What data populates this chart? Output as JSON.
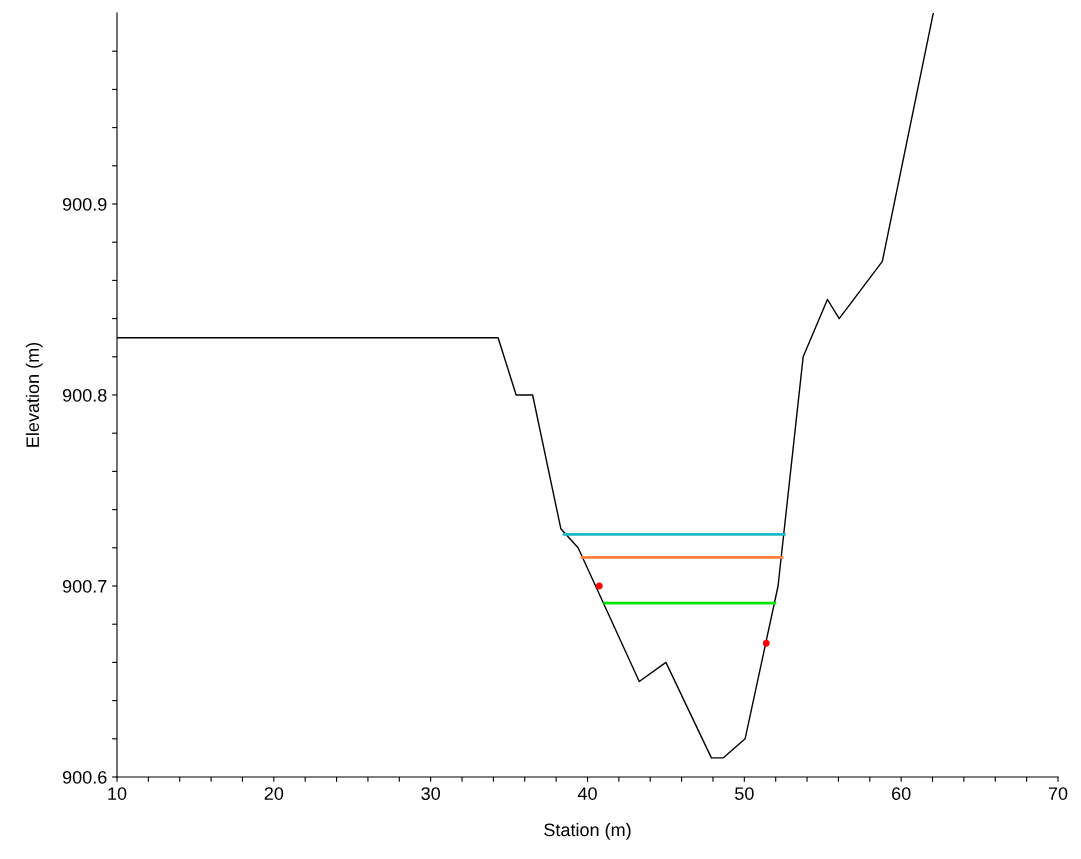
{
  "chart_data": {
    "type": "line",
    "xlabel": "Station (m)",
    "ylabel": "Elevation (m)",
    "xlim": [
      10,
      70
    ],
    "ylim": [
      900.6,
      901.0
    ],
    "xticks": [
      10,
      {
        "value": 12,
        "label": null
      },
      {
        "value": 14,
        "label": null
      },
      {
        "value": 16,
        "label": null
      },
      {
        "value": 18,
        "label": null
      },
      20,
      {
        "value": 22,
        "label": null
      },
      {
        "value": 24,
        "label": null
      },
      {
        "value": 26,
        "label": null
      },
      {
        "value": 28,
        "label": null
      },
      30,
      {
        "value": 32,
        "label": null
      },
      {
        "value": 34,
        "label": null
      },
      {
        "value": 36,
        "label": null
      },
      {
        "value": 38,
        "label": null
      },
      40,
      {
        "value": 42,
        "label": null
      },
      {
        "value": 44,
        "label": null
      },
      {
        "value": 46,
        "label": null
      },
      {
        "value": 48,
        "label": null
      },
      50,
      {
        "value": 52,
        "label": null
      },
      {
        "value": 54,
        "label": null
      },
      {
        "value": 56,
        "label": null
      },
      {
        "value": 58,
        "label": null
      },
      60,
      {
        "value": 62,
        "label": null
      },
      {
        "value": 64,
        "label": null
      },
      {
        "value": 66,
        "label": null
      },
      {
        "value": 68,
        "label": null
      },
      70
    ],
    "yticks": [
      900.6,
      {
        "value": 900.62,
        "label": null
      },
      {
        "value": 900.64,
        "label": null
      },
      {
        "value": 900.66,
        "label": null
      },
      {
        "value": 900.68,
        "label": null
      },
      900.7,
      {
        "value": 900.72,
        "label": null
      },
      {
        "value": 900.74,
        "label": null
      },
      {
        "value": 900.76,
        "label": null
      },
      {
        "value": 900.78,
        "label": null
      },
      900.8,
      {
        "value": 900.82,
        "label": null
      },
      {
        "value": 900.84,
        "label": null
      },
      {
        "value": 900.86,
        "label": null
      },
      {
        "value": 900.88,
        "label": null
      },
      900.9,
      {
        "value": 900.92,
        "label": null
      },
      {
        "value": 900.94,
        "label": null
      },
      {
        "value": 900.96,
        "label": null
      },
      {
        "value": 900.98,
        "label": null
      }
    ],
    "grid": false,
    "series": [
      {
        "color": "#000000",
        "x": [
          10,
          34.3,
          35.45,
          36.5,
          38.3,
          39.4,
          43.3,
          45.0,
          47.9,
          48.65,
          50.05,
          52.15,
          53.75,
          55.3,
          56.05,
          58.8,
          62.05
        ],
        "values": [
          900.83,
          900.83,
          900.8,
          900.8,
          900.73,
          900.72,
          900.65,
          900.66,
          900.61,
          900.61,
          900.62,
          900.7,
          900.82,
          900.85,
          900.84,
          900.87,
          901.0
        ]
      },
      {
        "color": "#1ab8c4",
        "x": [
          38.5,
          52.55
        ],
        "values": [
          900.727,
          900.727
        ]
      },
      {
        "color": "#ff7f3f",
        "x": [
          39.65,
          52.4
        ],
        "values": [
          900.715,
          900.715
        ]
      },
      {
        "color": "#00e600",
        "x": [
          41.1,
          51.95
        ],
        "values": [
          900.691,
          900.691
        ]
      },
      {
        "type": "scatter",
        "color": "#ff0000",
        "marker": "circle",
        "x": [
          40.75,
          51.4
        ],
        "values": [
          900.7,
          900.67
        ]
      }
    ]
  }
}
